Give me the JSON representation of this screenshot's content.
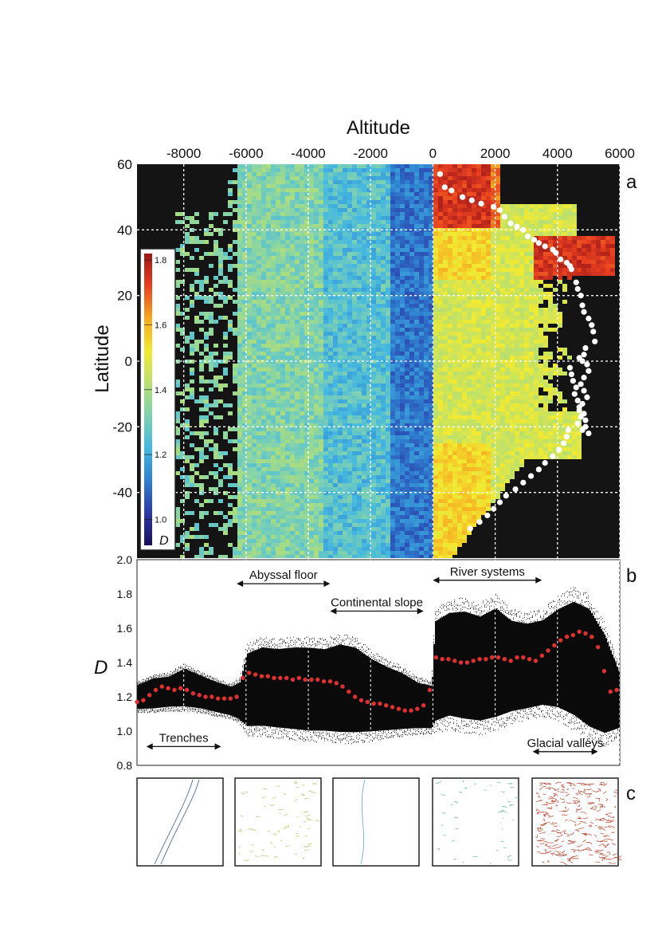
{
  "panel_a": {
    "x_title": "Altitude",
    "y_title": "Latitude",
    "letter": "a",
    "x_ticks": [
      "-8000",
      "-6000",
      "-4000",
      "-2000",
      "0",
      "2000",
      "4000",
      "6000"
    ],
    "x_tick_values": [
      -8000,
      -6000,
      -4000,
      -2000,
      0,
      2000,
      4000,
      6000
    ],
    "y_ticks": [
      "60",
      "40",
      "20",
      "0",
      "-20",
      "-40"
    ],
    "y_tick_values": [
      60,
      40,
      20,
      0,
      -20,
      -40
    ],
    "colorbar": {
      "ticks": [
        "1.8",
        "1.6",
        "1.4",
        "1.2",
        "1.0"
      ],
      "tick_values": [
        1.8,
        1.6,
        1.4,
        1.2,
        1.0
      ],
      "label": "D",
      "range": [
        0.92,
        1.82
      ],
      "colors": [
        "#1a1060",
        "#2a3aa8",
        "#2f7fd0",
        "#45b8e0",
        "#7fd2b0",
        "#b8e070",
        "#f2ea30",
        "#f6a820",
        "#e84020",
        "#a01818"
      ]
    },
    "background": "#141414",
    "snowline_points_color": "#ffffff"
  },
  "panel_b": {
    "letter": "b",
    "y_title": "D",
    "y_ticks": [
      "2.0",
      "1.8",
      "1.6",
      "1.4",
      "1.2",
      "1.0",
      "0.8"
    ],
    "y_tick_values": [
      2.0,
      1.8,
      1.6,
      1.4,
      1.2,
      1.0,
      0.8
    ],
    "annotations": [
      {
        "text": "Abyssal floor",
        "from": -6300,
        "to": -3300,
        "y": 1.86
      },
      {
        "text": "Continental slope",
        "from": -3300,
        "to": -300,
        "y": 1.7
      },
      {
        "text": "River systems",
        "from": 0,
        "to": 3500,
        "y": 1.88
      },
      {
        "text": "Trenches",
        "from": -9200,
        "to": -6800,
        "y": 0.91
      },
      {
        "text": "Glacial valleys",
        "from": 3200,
        "to": 5300,
        "y": 0.88
      }
    ]
  },
  "panel_c": {
    "letter": "c",
    "thumbnails": [
      {
        "name": "trench",
        "color": "#4a5a8a"
      },
      {
        "name": "abyssal",
        "color": "#b8c060"
      },
      {
        "name": "slope",
        "color": "#5aa8d0"
      },
      {
        "name": "river",
        "color": "#60b890"
      },
      {
        "name": "glacial",
        "color": "#b8402a"
      }
    ]
  },
  "chart_data": [
    {
      "type": "heatmap",
      "title": "",
      "xlabel": "Altitude",
      "ylabel": "Latitude",
      "xlim": [
        -9500,
        6000
      ],
      "ylim": [
        -60,
        60
      ],
      "color_scale": {
        "label": "D",
        "min": 0.92,
        "max": 1.82
      },
      "overlay_points": {
        "name": "snowline",
        "x": [
          230,
          380,
          600,
          950,
          1250,
          1550,
          1950,
          2150,
          2300,
          2500,
          2700,
          2900,
          3050,
          3250,
          3400,
          3600,
          3850,
          3950,
          4100,
          4300,
          4400,
          4450,
          4600,
          4650,
          4750,
          4800,
          4850,
          5000,
          5100,
          5150,
          5200,
          4900,
          4850,
          4700,
          4800,
          4950,
          5000,
          4850,
          4750,
          4850,
          4950,
          4800,
          4700,
          4750,
          4650,
          4900,
          4800,
          5000,
          4900,
          4850,
          4700,
          4650,
          4550,
          4600,
          4500,
          4450,
          4400,
          4350,
          4300,
          4200,
          4050,
          3850,
          3600,
          3400,
          3150,
          2900,
          2650,
          2350,
          2150,
          1950,
          1750,
          1500,
          1200
        ],
        "y": [
          57,
          53,
          52,
          50,
          49,
          48,
          47,
          46,
          44,
          42,
          41,
          40,
          38,
          37,
          36,
          35,
          34,
          33,
          31,
          30,
          29,
          28,
          24,
          22,
          20,
          17,
          15,
          13,
          11,
          9,
          6,
          4,
          2,
          1,
          0,
          -1,
          -3,
          -5,
          -7,
          -9,
          -11,
          -13,
          -15,
          -17,
          -19,
          -20,
          -21,
          -22,
          -18,
          -16,
          -14,
          -12,
          -10,
          -8,
          -6,
          -4,
          -2,
          -21,
          -23,
          -25,
          -27,
          -29,
          -31,
          -33,
          -35,
          -37,
          -39,
          -41,
          -43,
          -45,
          -47,
          -49,
          -51
        ]
      }
    },
    {
      "type": "scatter",
      "title": "",
      "xlabel": "Altitude",
      "ylabel": "D",
      "xlim": [
        -9500,
        6000
      ],
      "ylim": [
        0.8,
        2.0
      ],
      "series": [
        {
          "color": "#e03030",
          "x": [
            -9500,
            -9300,
            -9100,
            -8900,
            -8700,
            -8500,
            -8300,
            -8100,
            -7900,
            -7700,
            -7500,
            -7300,
            -7100,
            -6900,
            -6700,
            -6500,
            -6300,
            -6100,
            -5900,
            -5700,
            -5500,
            -5300,
            -5100,
            -4900,
            -4700,
            -4500,
            -4300,
            -4100,
            -3900,
            -3700,
            -3500,
            -3300,
            -3100,
            -2900,
            -2700,
            -2500,
            -2300,
            -2100,
            -1900,
            -1700,
            -1500,
            -1300,
            -1100,
            -900,
            -700,
            -500,
            -300,
            -100,
            100,
            300,
            500,
            700,
            900,
            1100,
            1300,
            1500,
            1700,
            1900,
            2100,
            2300,
            2500,
            2700,
            2900,
            3100,
            3300,
            3500,
            3700,
            3900,
            4100,
            4300,
            4500,
            4700,
            4900,
            5100,
            5300,
            5500,
            5700,
            5900
          ],
          "y": [
            1.17,
            1.18,
            1.21,
            1.24,
            1.26,
            1.25,
            1.24,
            1.25,
            1.24,
            1.22,
            1.21,
            1.2,
            1.2,
            1.19,
            1.19,
            1.19,
            1.2,
            1.31,
            1.34,
            1.33,
            1.32,
            1.32,
            1.31,
            1.31,
            1.31,
            1.3,
            1.31,
            1.3,
            1.3,
            1.3,
            1.29,
            1.29,
            1.28,
            1.26,
            1.23,
            1.2,
            1.18,
            1.17,
            1.16,
            1.16,
            1.15,
            1.14,
            1.13,
            1.12,
            1.12,
            1.13,
            1.15,
            1.24,
            1.43,
            1.42,
            1.42,
            1.41,
            1.4,
            1.4,
            1.41,
            1.42,
            1.42,
            1.43,
            1.43,
            1.42,
            1.41,
            1.43,
            1.43,
            1.42,
            1.41,
            1.44,
            1.47,
            1.5,
            1.53,
            1.55,
            1.56,
            1.58,
            1.57,
            1.55,
            1.49,
            1.35,
            1.23,
            1.24
          ]
        }
      ],
      "cloud_band": {
        "x": [
          -9500,
          -9000,
          -8500,
          -8000,
          -7500,
          -7000,
          -6500,
          -6200,
          -6000,
          -5500,
          -5000,
          -4500,
          -4000,
          -3500,
          -3000,
          -2500,
          -2000,
          -1500,
          -1000,
          -500,
          -50,
          50,
          500,
          1000,
          1500,
          2000,
          2500,
          3000,
          3500,
          4000,
          4500,
          5000,
          5500,
          6000
        ],
        "y_low": [
          1.12,
          1.12,
          1.13,
          1.13,
          1.12,
          1.1,
          1.08,
          1.05,
          1.0,
          1.0,
          0.99,
          0.98,
          0.97,
          0.97,
          0.96,
          0.96,
          0.97,
          0.98,
          0.99,
          1.0,
          1.0,
          1.02,
          1.05,
          1.03,
          1.02,
          1.04,
          1.08,
          1.1,
          1.12,
          1.1,
          1.05,
          0.98,
          0.95,
          1.0
        ],
        "y_high": [
          1.28,
          1.32,
          1.33,
          1.38,
          1.34,
          1.3,
          1.27,
          1.3,
          1.48,
          1.52,
          1.51,
          1.52,
          1.52,
          1.51,
          1.54,
          1.52,
          1.45,
          1.4,
          1.36,
          1.3,
          1.28,
          1.68,
          1.73,
          1.74,
          1.71,
          1.76,
          1.68,
          1.66,
          1.68,
          1.75,
          1.8,
          1.76,
          1.6,
          1.35
        ]
      }
    }
  ]
}
